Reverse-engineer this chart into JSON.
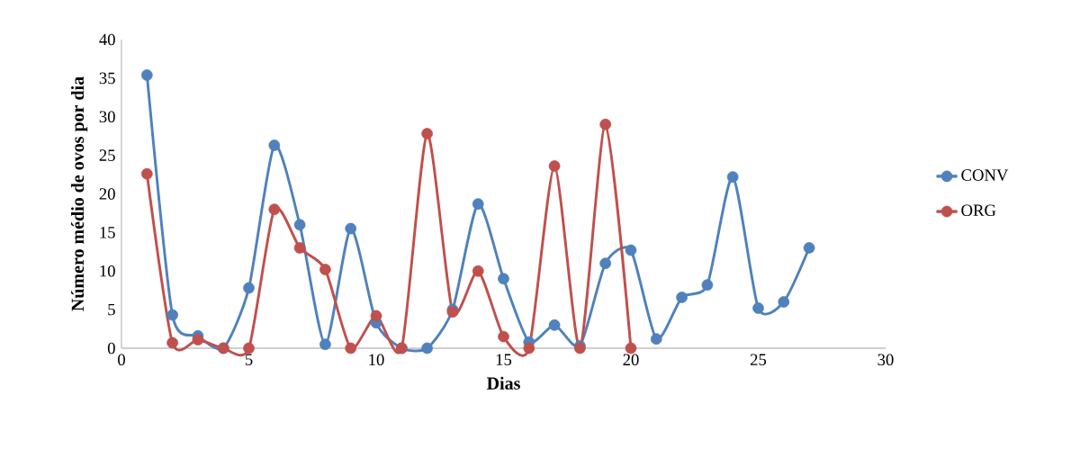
{
  "chart_data": {
    "type": "line",
    "xlabel": "Dias",
    "ylabel": "Número médio de ovos por dia",
    "xlim": [
      0,
      30
    ],
    "xticks": [
      0,
      5,
      10,
      15,
      20,
      25,
      30
    ],
    "ylim": [
      0,
      40
    ],
    "yticks": [
      0,
      5,
      10,
      15,
      20,
      25,
      30,
      35,
      40
    ],
    "x": [
      1,
      2,
      3,
      4,
      5,
      6,
      7,
      8,
      9,
      10,
      11,
      12,
      13,
      14,
      15,
      16,
      17,
      18,
      19,
      20,
      21,
      22,
      23,
      24,
      25,
      26,
      27
    ],
    "series": [
      {
        "name": "CONV",
        "color": "#4f81bd",
        "values": [
          35.4,
          4.3,
          1.6,
          0,
          7.8,
          26.3,
          16.0,
          0.5,
          15.5,
          3.3,
          0,
          0,
          5.0,
          18.7,
          9.0,
          0.8,
          3.0,
          0.3,
          11.0,
          12.7,
          1.2,
          6.6,
          8.2,
          22.2,
          5.2,
          6.0,
          13.0
        ]
      },
      {
        "name": "ORG",
        "color": "#c0504d",
        "values": [
          22.6,
          0.7,
          1.1,
          0,
          0,
          18.0,
          13.0,
          10.2,
          0,
          4.2,
          0,
          27.8,
          4.7,
          10.0,
          1.5,
          0,
          23.6,
          0,
          29.0,
          0,
          null,
          null,
          null,
          null,
          null,
          null,
          null
        ]
      }
    ],
    "legend": "right",
    "grid": false,
    "marker": "circle",
    "line_style": "solid"
  }
}
